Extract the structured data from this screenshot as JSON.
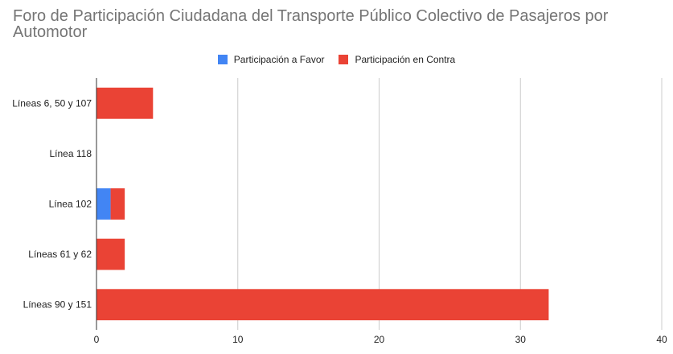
{
  "chart_data": {
    "type": "bar",
    "orientation": "horizontal",
    "stacked": true,
    "title": "Foro de Participación Ciudadana del Transporte Público Colectivo de Pasajeros por Automotor",
    "categories": [
      "Líneas 6, 50 y 107",
      "Línea 118",
      "Línea 102",
      "Líneas 61 y 62",
      "Líneas 90 y 151"
    ],
    "series": [
      {
        "name": "Participación a Favor",
        "color": "#4285f4",
        "values": [
          0,
          0,
          1,
          0,
          0
        ]
      },
      {
        "name": "Participación en Contra",
        "color": "#ea4335",
        "values": [
          4,
          0,
          1,
          2,
          32
        ]
      }
    ],
    "xlim": [
      0,
      40
    ],
    "xticks": [
      "0",
      "10",
      "20",
      "30",
      "40"
    ],
    "grid": true,
    "legend_position": "top"
  }
}
